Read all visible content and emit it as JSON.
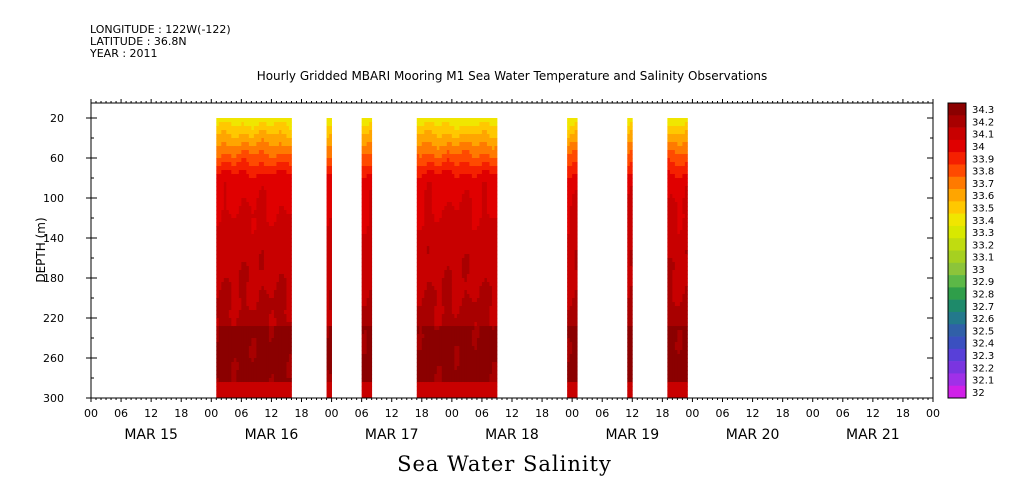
{
  "header": {
    "longitude": "LONGITUDE : 122W(-122)",
    "latitude": "LATITUDE : 36.8N",
    "year": "YEAR : 2011"
  },
  "chart_data": {
    "type": "heatmap",
    "title": "Hourly Gridded MBARI Mooring M1 Sea Water Temperature and Salinity Observations",
    "bottom_title": "Sea Water Salinity",
    "ylabel": "DEPTH (m)",
    "ylim": [
      300,
      5
    ],
    "y_ticks": [
      20,
      60,
      100,
      140,
      180,
      220,
      260,
      300
    ],
    "x_hours_range": [
      0,
      168
    ],
    "x_hour_ticks": [
      "00",
      "06",
      "12",
      "18",
      "00",
      "06",
      "12",
      "18",
      "00",
      "06",
      "12",
      "18",
      "00",
      "06",
      "12",
      "18",
      "00",
      "06",
      "12",
      "18",
      "00",
      "06",
      "12",
      "18",
      "00",
      "06",
      "12",
      "18",
      "00"
    ],
    "x_day_labels": [
      "MAR 15",
      "MAR 16",
      "MAR 17",
      "MAR 18",
      "MAR 19",
      "MAR 20",
      "MAR 21"
    ],
    "depth_data_range": [
      20,
      300
    ],
    "data_segments_hours": [
      [
        25,
        40
      ],
      [
        47,
        48
      ],
      [
        54,
        56
      ],
      [
        65,
        81
      ],
      [
        95,
        97
      ],
      [
        107,
        108
      ],
      [
        115,
        119
      ]
    ],
    "colorbar": {
      "levels": [
        "34.3",
        "34.2",
        "34.1",
        "34",
        "33.9",
        "33.8",
        "33.7",
        "33.6",
        "33.5",
        "33.4",
        "33.3",
        "33.2",
        "33.1",
        "33",
        "32.9",
        "32.8",
        "32.7",
        "32.6",
        "32.5",
        "32.4",
        "32.3",
        "32.2",
        "32.1",
        "32"
      ],
      "colors": [
        "#8b0000",
        "#a80000",
        "#c80000",
        "#e00000",
        "#f52000",
        "#ff4a00",
        "#ff7a00",
        "#ffa500",
        "#ffc800",
        "#f0e600",
        "#d8e800",
        "#c0dc10",
        "#a6d020",
        "#8cc43a",
        "#5cb847",
        "#2f9e4a",
        "#1e8a6a",
        "#23798c",
        "#3060a8",
        "#3a50c0",
        "#5840d8",
        "#7a35e0",
        "#a030e8",
        "#d020e8"
      ]
    }
  }
}
